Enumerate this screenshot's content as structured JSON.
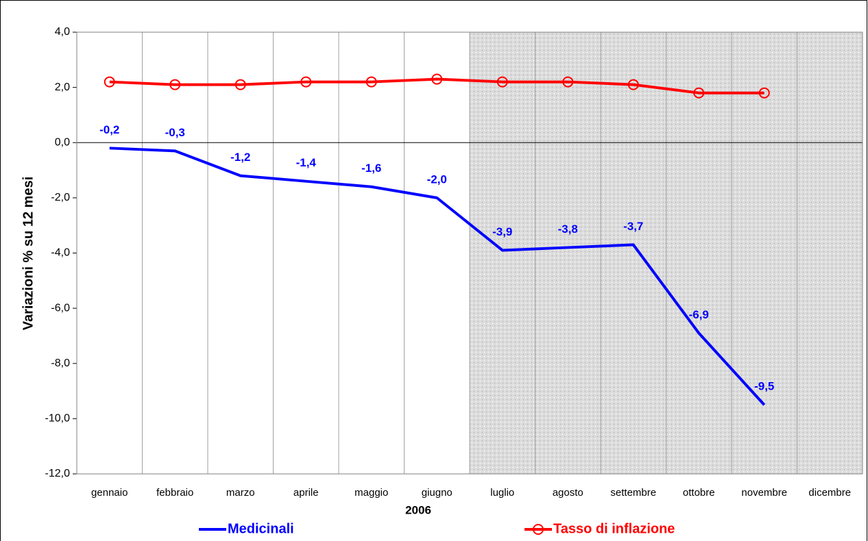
{
  "chart_data": {
    "type": "line",
    "y_label": "Variazioni % su 12 mesi",
    "x_label": "2006",
    "categories": [
      "gennaio",
      "febbraio",
      "marzo",
      "aprile",
      "maggio",
      "giugno",
      "luglio",
      "agosto",
      "settembre",
      "ottobre",
      "novembre",
      "dicembre"
    ],
    "series": [
      {
        "name": "Medicinali",
        "color": "#0000ff",
        "marker": "none",
        "values": [
          -0.2,
          -0.3,
          -1.2,
          -1.4,
          -1.6,
          -2.0,
          -3.9,
          -3.8,
          -3.7,
          -6.9,
          -9.5,
          null
        ],
        "value_labels": [
          "-0,2",
          "-0,3",
          "-1,2",
          "-1,4",
          "-1,6",
          "-2,0",
          "-3,9",
          "-3,8",
          "-3,7",
          "-6,9",
          "-9,5",
          null
        ]
      },
      {
        "name": "Tasso di inflazione",
        "color": "#ff0000",
        "marker": "circle",
        "values": [
          2.2,
          2.1,
          2.1,
          2.2,
          2.2,
          2.3,
          2.2,
          2.2,
          2.1,
          1.8,
          1.8,
          null
        ]
      }
    ],
    "ylim": [
      -12,
      4
    ],
    "yticks": [
      {
        "value": -12,
        "label": "-12,0"
      },
      {
        "value": -10,
        "label": "-10,0"
      },
      {
        "value": -8,
        "label": "-8,0"
      },
      {
        "value": -6,
        "label": "-6,0"
      },
      {
        "value": -4,
        "label": "-4,0"
      },
      {
        "value": -2,
        "label": "-2,0"
      },
      {
        "value": 0,
        "label": "0,0"
      },
      {
        "value": 2,
        "label": "2,0"
      },
      {
        "value": 4,
        "label": "4,0"
      }
    ],
    "grid": true
  }
}
